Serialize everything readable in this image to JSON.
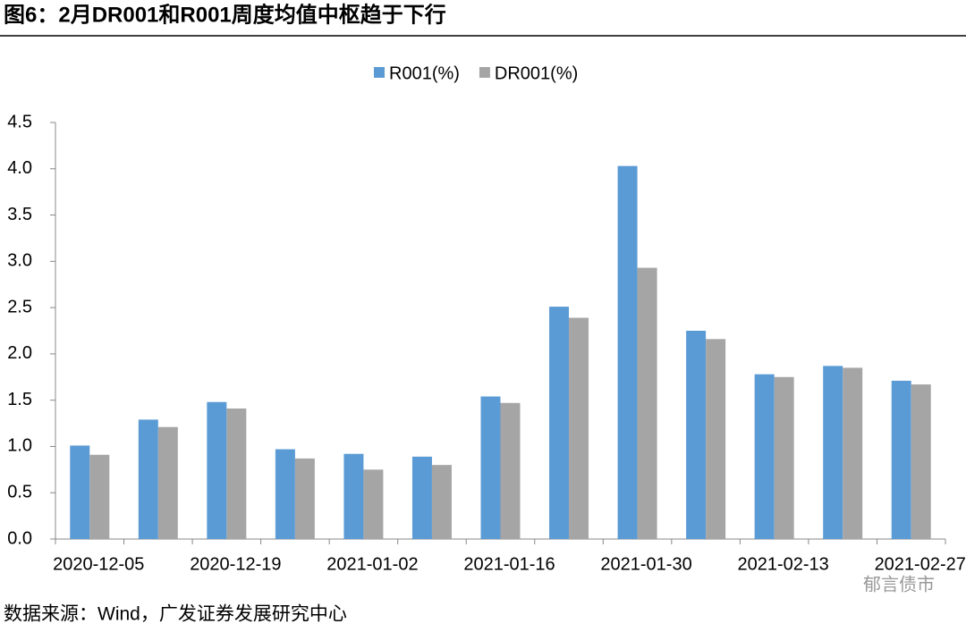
{
  "title": "图6：2月DR001和R001周度均值中枢趋于下行",
  "source": "数据来源：Wind，广发证券发展研究中心",
  "watermark": "郁言债市",
  "chart_data": {
    "type": "bar",
    "categories": [
      "2020-12-05",
      null,
      "2020-12-19",
      null,
      "2021-01-02",
      null,
      "2021-01-16",
      null,
      "2021-01-30",
      null,
      "2021-02-13",
      null,
      "2021-02-27"
    ],
    "series": [
      {
        "name": "R001(%)",
        "color": "#5b9bd5",
        "values": [
          1.01,
          1.29,
          1.48,
          0.97,
          0.92,
          0.89,
          1.54,
          2.51,
          4.03,
          2.25,
          1.78,
          1.87,
          1.71
        ]
      },
      {
        "name": "DR001(%)",
        "color": "#a5a5a5",
        "values": [
          0.91,
          1.21,
          1.41,
          0.87,
          0.75,
          0.8,
          1.47,
          2.39,
          2.93,
          2.16,
          1.75,
          1.85,
          1.67
        ]
      }
    ],
    "ylim": [
      0,
      4.5
    ],
    "yticks": [
      {
        "value": 0,
        "label": "0.0"
      },
      0.5,
      {
        "value": 1,
        "label": "1.0"
      },
      1.5,
      {
        "value": 2,
        "label": "2.0"
      },
      2.5,
      {
        "value": 3,
        "label": "3.0"
      },
      3.5,
      {
        "value": 4,
        "label": "4.0"
      },
      4.5
    ],
    "legend": "top"
  }
}
